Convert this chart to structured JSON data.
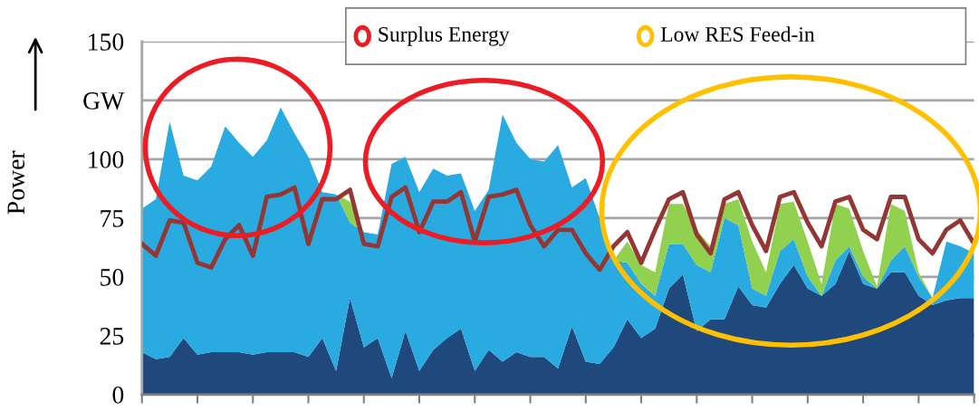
{
  "chart_data": {
    "type": "area",
    "stacked": true,
    "ylabel": "Power",
    "categories": [
      null,
      null,
      null,
      null,
      null,
      null,
      null,
      null,
      null,
      null,
      null,
      null,
      null,
      null,
      null,
      null,
      null,
      null,
      null,
      null,
      null,
      null,
      null,
      null,
      null,
      null,
      null,
      null,
      null,
      null,
      null,
      null,
      null,
      null,
      null,
      null,
      null,
      null,
      null,
      null,
      null,
      null,
      null,
      null,
      null,
      null,
      null,
      null,
      null,
      null,
      null,
      null,
      null,
      null,
      null,
      null,
      null,
      null,
      null,
      null,
      null
    ],
    "annotations": [
      "Surplus Energy",
      "Low RES Feed-in"
    ],
    "ylim": [
      0,
      150
    ],
    "yticks": [
      0,
      25,
      50,
      75,
      100,
      {
        "value": 125,
        "label": "GW"
      },
      150
    ],
    "tick_labels": "y",
    "grid": "y",
    "series": [
      {
        "color": "#1f497d",
        "values": [
          18,
          15,
          16,
          24,
          17,
          18,
          18,
          18,
          17,
          18,
          18,
          18,
          16,
          24,
          10,
          41,
          20,
          24,
          7,
          27,
          10,
          19,
          24,
          28,
          10,
          19,
          14,
          18,
          16,
          16,
          11,
          29,
          14,
          13,
          20,
          32,
          24,
          28,
          45,
          51,
          27,
          32,
          32,
          46,
          38,
          37,
          47,
          55,
          45,
          42,
          47,
          61,
          47,
          45,
          52,
          52,
          42,
          38,
          40,
          41,
          41
        ]
      },
      {
        "color": "#29abe2",
        "values": [
          61,
          68,
          100,
          69,
          74,
          79,
          96,
          89,
          84,
          90,
          104,
          93,
          85,
          62,
          75,
          32,
          49,
          44,
          91,
          74,
          76,
          77,
          69,
          66,
          68,
          68,
          105,
          89,
          84,
          83,
          95,
          59,
          78,
          62,
          37,
          24,
          23,
          14,
          19,
          13,
          28,
          20,
          43,
          26,
          7,
          5,
          14,
          11,
          5,
          0,
          10,
          2,
          3,
          0,
          5,
          11,
          8,
          3,
          25,
          22,
          19
        ]
      },
      {
        "color": "#92d050",
        "values": [
          0,
          0,
          0,
          0,
          0,
          0,
          0,
          0,
          0,
          0,
          0,
          0,
          0,
          0,
          0,
          9,
          0,
          0,
          0,
          0,
          0,
          0,
          0,
          0,
          0,
          0,
          0,
          0,
          0,
          0,
          0,
          0,
          0,
          0,
          0,
          9,
          8,
          10,
          17,
          17,
          15,
          11,
          6,
          11,
          20,
          10,
          20,
          16,
          15,
          5,
          24,
          16,
          11,
          1,
          24,
          15,
          2,
          0,
          0,
          0,
          0
        ]
      },
      {
        "type": "line",
        "color": "#943634",
        "values": [
          64,
          59,
          74,
          73,
          56,
          54,
          66,
          72,
          59,
          84,
          85,
          88,
          64,
          83,
          83,
          87,
          64,
          63,
          84,
          88,
          69,
          82,
          82,
          86,
          65,
          84,
          85,
          87,
          72,
          63,
          70,
          70,
          60,
          53,
          63,
          69,
          56,
          70,
          83,
          86,
          68,
          60,
          83,
          86,
          72,
          61,
          84,
          86,
          73,
          63,
          82,
          84,
          70,
          66,
          84,
          84,
          66,
          60,
          70,
          74,
          64
        ]
      }
    ]
  }
}
